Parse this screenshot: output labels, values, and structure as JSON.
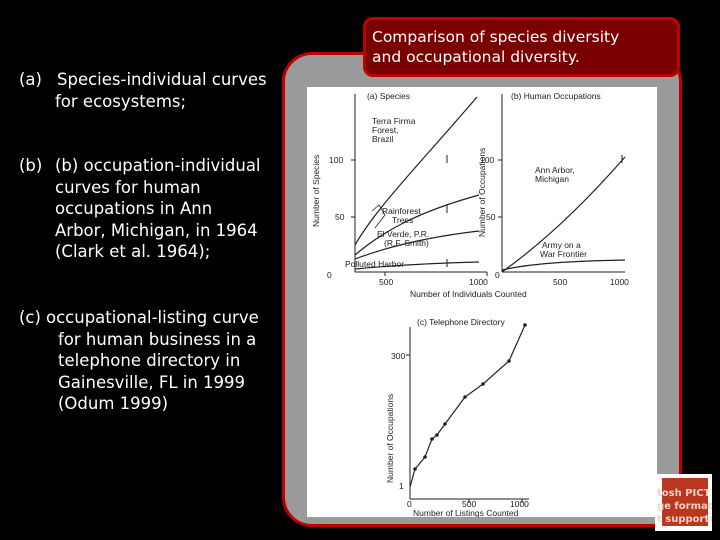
{
  "title_box": {
    "text_line1": "Comparison of species diversity",
    "text_line2": "and occupational diversity."
  },
  "bullets": [
    {
      "label": "(a)",
      "lines": [
        "Species-individual curves",
        "for ecosystems;"
      ]
    },
    {
      "label": "(b)",
      "lines": [
        "(b) occupation-individual",
        "curves for human",
        "occupations in Ann",
        "Arbor, Michigan, in 1964",
        "(Clark et al. 1964);"
      ]
    },
    {
      "label": "(c)",
      "lines": [
        "occupational-listing curve",
        "for human business in a",
        "telephone directory in",
        "Gainesville, FL in 1999",
        "(Odum 1999)"
      ]
    }
  ],
  "figure": {
    "panel_a": {
      "title": "(a) Species",
      "ylabel": "Number of Species",
      "yticks": [
        "100",
        "50",
        "0"
      ],
      "xticks": [
        "500"
      ],
      "labels": [
        "Terra Firma",
        "Forest,",
        "Brazil",
        "Rainforest",
        "Trees",
        "El Verde, P.R.",
        "(R.F. Smith)",
        "Polluted Harbor"
      ]
    },
    "panel_b": {
      "title": "(b) Human Occupations",
      "ylabel": "Number of Occupations",
      "yticks": [
        "100",
        "50",
        "0"
      ],
      "xticks": [
        "1000",
        "500",
        "1000"
      ],
      "labels": [
        "Ann Arbor,",
        "Michigan",
        "Army on a",
        "War Frontier"
      ]
    },
    "shared_xlabel": "Number of Individuals Counted",
    "panel_c": {
      "title": "(c) Telephone Directory",
      "ylabel": "Number of Occupations",
      "yticks": [
        "300",
        "1"
      ],
      "xticks": [
        "0",
        "500",
        "1000"
      ],
      "xlabel": "Number of Listings Counted"
    }
  },
  "placeholder_logo": {
    "lines": [
      "tosh PICT",
      "ge format",
      "t supported"
    ]
  },
  "colors": {
    "background": "#000000",
    "title_box": "#7a0000",
    "border": "#c00000",
    "panel": "#9a9a9a"
  }
}
